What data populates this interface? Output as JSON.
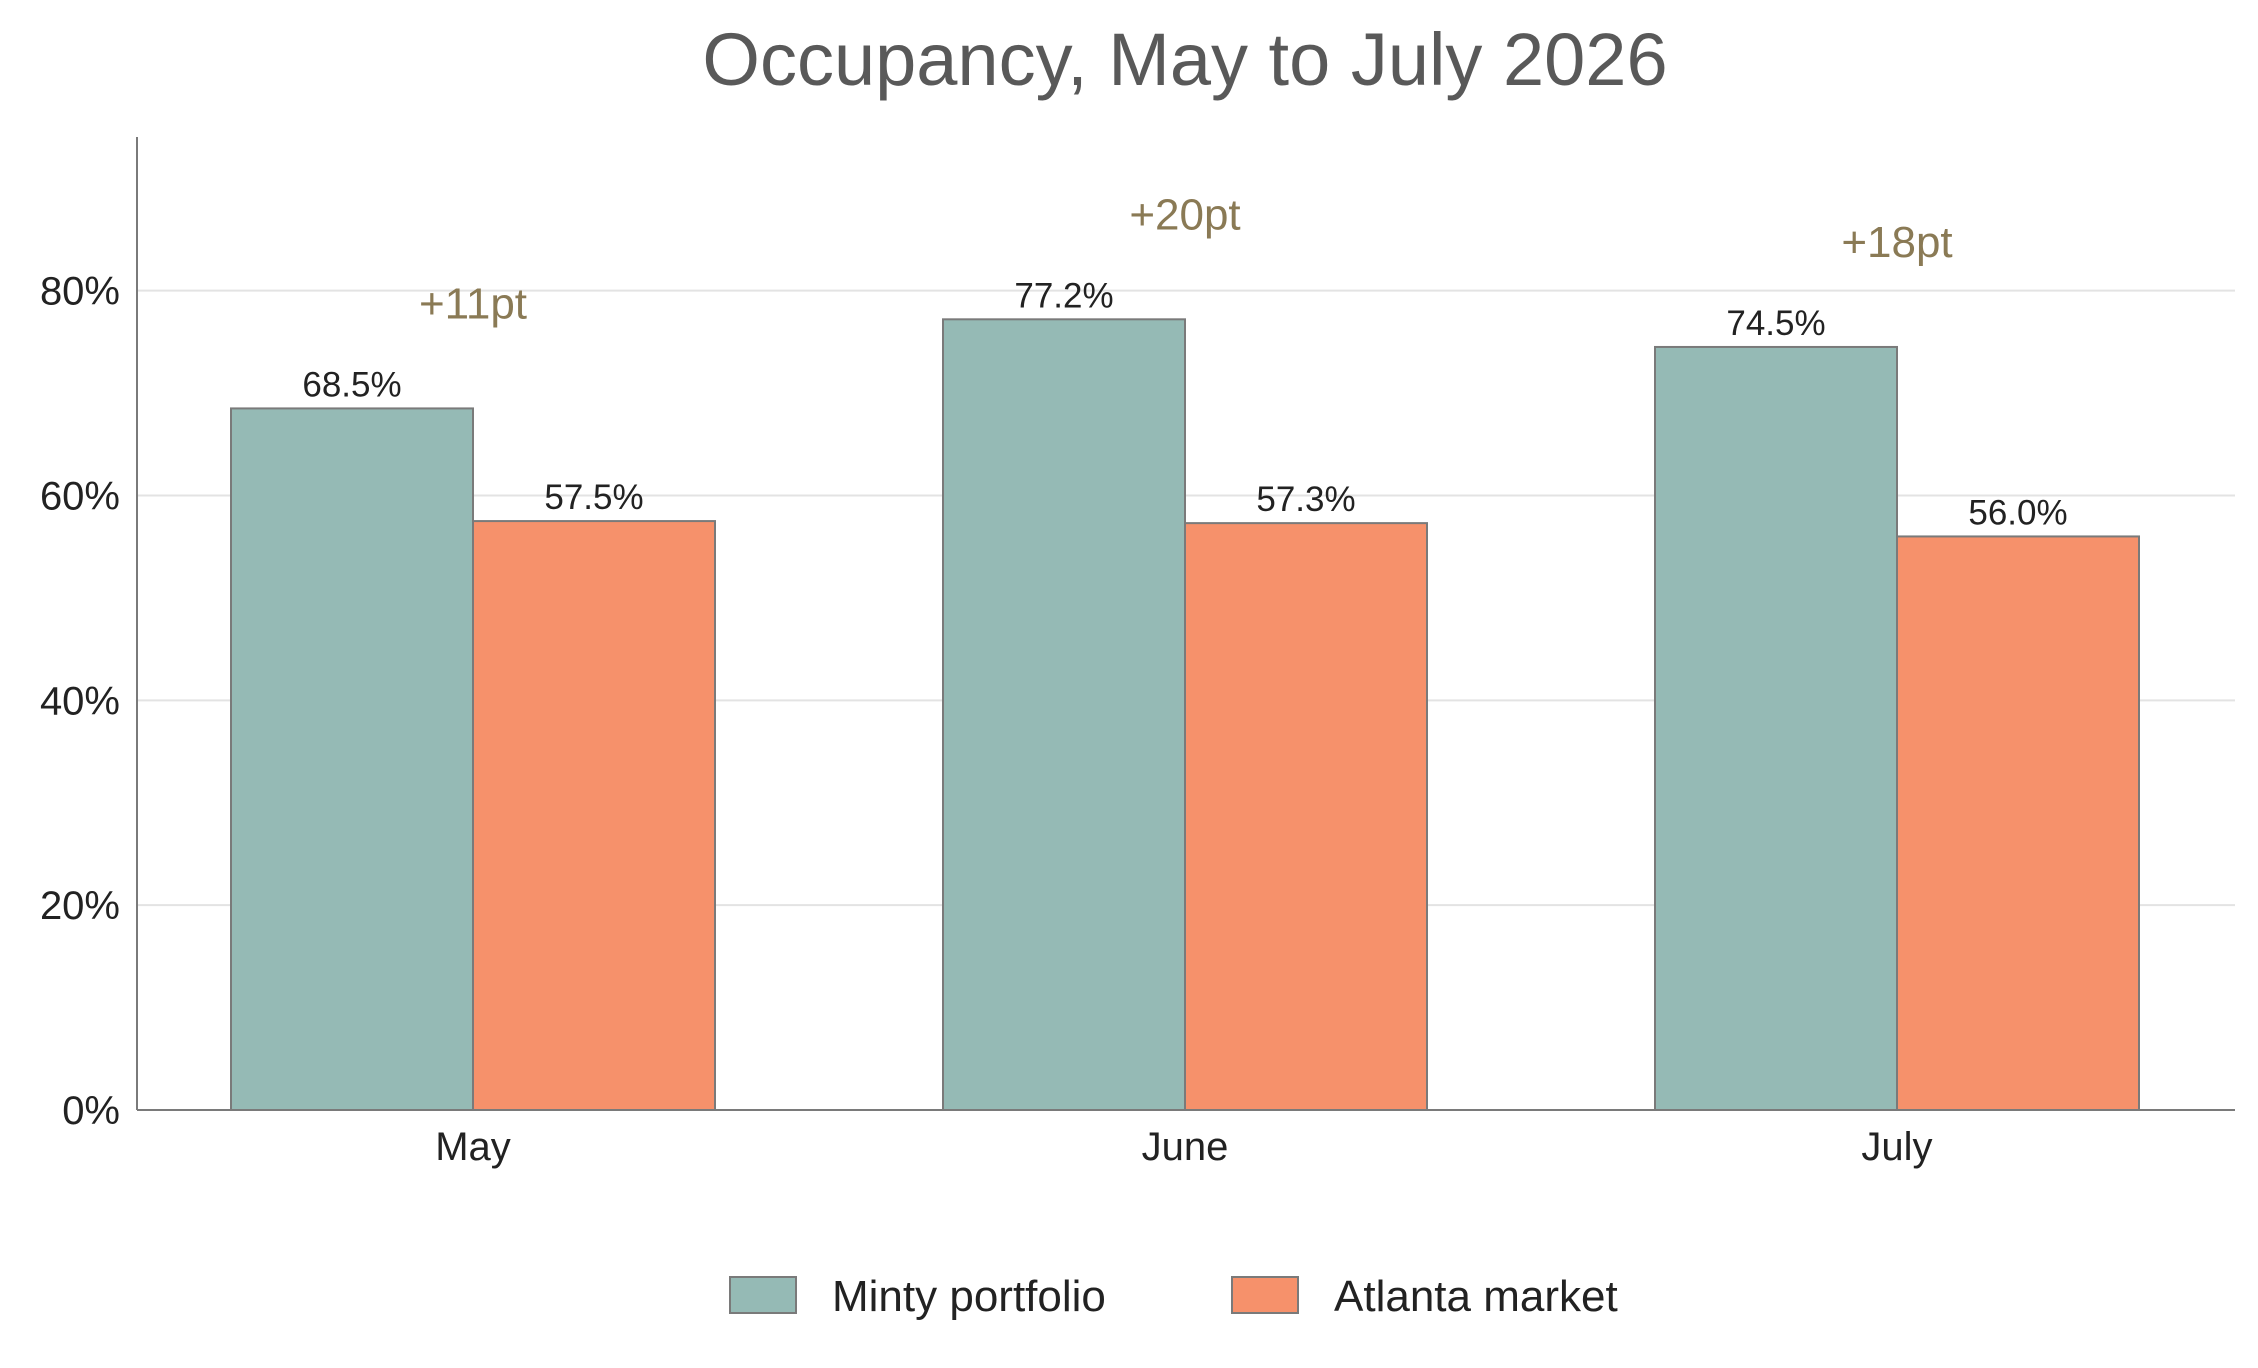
{
  "chart_data": {
    "type": "bar",
    "title": "Occupancy, May to July 2026",
    "categories": [
      "May",
      "June",
      "July"
    ],
    "series": [
      {
        "name": "Minty portfolio",
        "values": [
          68.5,
          77.2,
          74.5
        ],
        "labels": [
          "68.5%",
          "77.2%",
          "74.5%"
        ],
        "color": "#95bab5"
      },
      {
        "name": "Atlanta market",
        "values": [
          57.5,
          57.3,
          56.0
        ],
        "labels": [
          "57.5%",
          "57.3%",
          "56.0%"
        ],
        "color": "#f6916b"
      }
    ],
    "annotations": [
      {
        "category": "May",
        "text": "+11pt"
      },
      {
        "category": "June",
        "text": "+20pt"
      },
      {
        "category": "July",
        "text": "+18pt"
      }
    ],
    "annotation_color": "#8a7a55",
    "ylim": [
      0,
      95
    ],
    "yticks": [
      0,
      20,
      40,
      60,
      80
    ],
    "ytick_labels": [
      "0%",
      "20%",
      "40%",
      "60%",
      "80%"
    ],
    "xlabel": "",
    "ylabel": "",
    "grid": true,
    "legend_position": "bottom-center"
  }
}
